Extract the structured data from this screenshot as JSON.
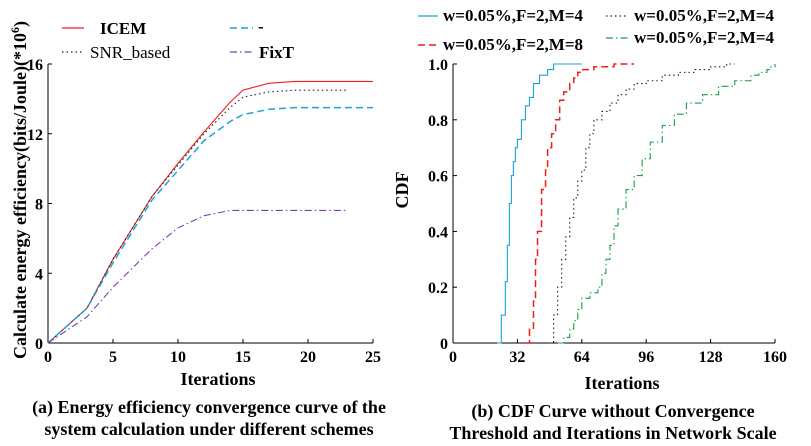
{
  "chart_data": [
    {
      "type": "line",
      "caption_line1": "(a) Energy efficiency convergence curve of the",
      "caption_line2": "system calculation under different schemes",
      "xlabel": "Iterations",
      "ylabel": "Calculate energy efficiency(bits/Joule)(*10",
      "ylabel_exp": "6",
      "ylabel_close": ")",
      "xlim": [
        0,
        25
      ],
      "ylim": [
        0,
        16
      ],
      "xticks": [
        "0",
        "5",
        "10",
        "15",
        "20",
        "25"
      ],
      "yticks": [
        "0",
        "4",
        "8",
        "12",
        "16"
      ],
      "legend": [
        "ICEM",
        "SNR_based",
        "-",
        "FixT"
      ],
      "series": [
        {
          "name": "ICEM",
          "color": "#e8211d",
          "dash": "solid",
          "x": [
            0,
            3,
            5,
            8,
            10,
            12,
            14,
            15,
            17,
            19,
            21,
            25
          ],
          "y": [
            0,
            2.0,
            4.8,
            8.4,
            10.3,
            12.1,
            13.8,
            14.5,
            14.9,
            15.0,
            15.0,
            15.0
          ]
        },
        {
          "name": "SNR_based",
          "color": "#222222",
          "dash": "dotted",
          "x": [
            0,
            3,
            5,
            8,
            10,
            12,
            14,
            15,
            17,
            19,
            21,
            23
          ],
          "y": [
            0,
            2.0,
            4.8,
            8.4,
            10.2,
            12.0,
            13.5,
            14.1,
            14.4,
            14.5,
            14.5,
            14.5
          ]
        },
        {
          "name": "-",
          "color": "#1ca3d9",
          "dash": "dashed",
          "x": [
            0,
            3,
            5,
            8,
            10,
            12,
            14,
            15,
            17,
            19,
            21,
            25
          ],
          "y": [
            0,
            2.0,
            4.6,
            8.2,
            9.9,
            11.6,
            12.7,
            13.1,
            13.4,
            13.5,
            13.5,
            13.5
          ]
        },
        {
          "name": "FixT",
          "color": "#7a3db8",
          "dash": "dashdot",
          "x": [
            0,
            3,
            5,
            8,
            10,
            12,
            14,
            15,
            17,
            19,
            21,
            23
          ],
          "y": [
            0,
            1.5,
            3.2,
            5.4,
            6.6,
            7.3,
            7.6,
            7.6,
            7.6,
            7.6,
            7.6,
            7.6
          ]
        }
      ]
    },
    {
      "type": "line",
      "caption_line1": "(b) CDF Curve without Convergence",
      "caption_line2": "Threshold and Iterations in Network Scale",
      "xlabel": "Iterations",
      "ylabel": "CDF",
      "xlim": [
        0,
        160
      ],
      "ylim": [
        0,
        1.0
      ],
      "xticks": [
        "0",
        "32",
        "64",
        "96",
        "128",
        "160"
      ],
      "yticks": [
        "0",
        "0.2",
        "0.4",
        "0.6",
        "0.8",
        "1.0"
      ],
      "legend": [
        "w=0.05%,F=2,M=4",
        "w=0.05%,F=2,M=8",
        "w=0.05%,F=2,M=4",
        "w=0.05%,F=2,M=4"
      ],
      "series": [
        {
          "name": "w=0.05%,F=2,M=4",
          "color": "#1ca3d9",
          "dash": "solid",
          "x": [
            22,
            24,
            26,
            27,
            28,
            29,
            30,
            31,
            32,
            34,
            36,
            38,
            40,
            43,
            47,
            50,
            60,
            64
          ],
          "y": [
            0,
            0.1,
            0.22,
            0.35,
            0.5,
            0.6,
            0.65,
            0.7,
            0.73,
            0.8,
            0.85,
            0.88,
            0.93,
            0.96,
            0.98,
            1.0,
            1.0,
            1.0
          ]
        },
        {
          "name": "w=0.05%,F=2,M=8",
          "color": "#e8211d",
          "dash": "dashed",
          "x": [
            36,
            38,
            40,
            41,
            42,
            44,
            46,
            47,
            49,
            51,
            53,
            55,
            58,
            60,
            62,
            64,
            70,
            80,
            90
          ],
          "y": [
            0,
            0.05,
            0.15,
            0.3,
            0.4,
            0.55,
            0.62,
            0.7,
            0.75,
            0.8,
            0.87,
            0.9,
            0.93,
            0.95,
            0.97,
            0.98,
            0.99,
            1.0,
            1.0
          ]
        },
        {
          "name": "w=0.05%,F=2,M=4",
          "color": "#222222",
          "dash": "dotted",
          "x": [
            48,
            50,
            52,
            54,
            56,
            58,
            60,
            62,
            64,
            66,
            68,
            70,
            74,
            78,
            82,
            86,
            90,
            96,
            104,
            112,
            120,
            128,
            136,
            140
          ],
          "y": [
            0,
            0.1,
            0.2,
            0.3,
            0.38,
            0.45,
            0.52,
            0.58,
            0.62,
            0.7,
            0.75,
            0.8,
            0.83,
            0.86,
            0.89,
            0.91,
            0.93,
            0.94,
            0.96,
            0.97,
            0.98,
            0.99,
            1.0,
            1.0
          ]
        },
        {
          "name": "w=0.05%,F=2,M=4",
          "color": "#1a9e4a",
          "dash": "dashdot",
          "x": [
            52,
            55,
            58,
            60,
            62,
            64,
            68,
            72,
            74,
            76,
            78,
            80,
            82,
            86,
            90,
            94,
            98,
            104,
            110,
            116,
            124,
            132,
            140,
            148,
            152,
            156,
            158,
            160
          ],
          "y": [
            0,
            0.02,
            0.05,
            0.08,
            0.12,
            0.16,
            0.18,
            0.2,
            0.25,
            0.3,
            0.35,
            0.42,
            0.48,
            0.55,
            0.6,
            0.66,
            0.72,
            0.78,
            0.82,
            0.86,
            0.89,
            0.92,
            0.94,
            0.96,
            0.97,
            0.98,
            0.99,
            1.0
          ]
        }
      ]
    }
  ]
}
